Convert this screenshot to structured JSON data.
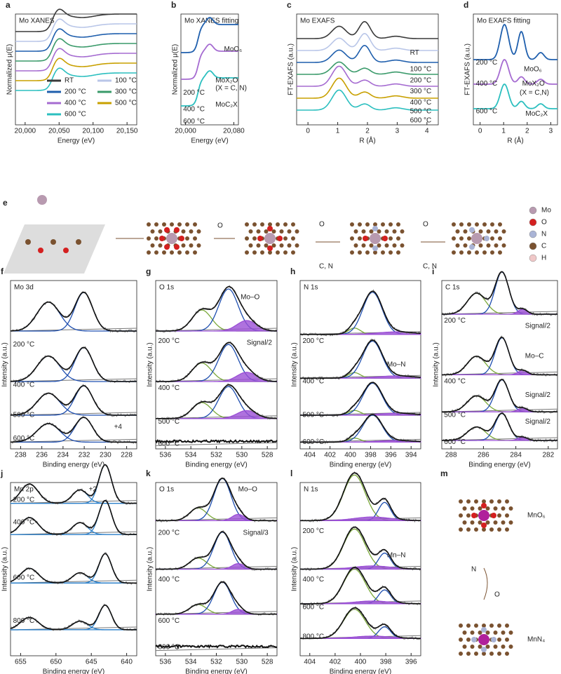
{
  "panels": {
    "a": {
      "letter": "a",
      "title": "Mo XANES",
      "ylabel": "Normalized μ(E)",
      "xlabel": "Energy (eV)",
      "xticks": [
        "20,000",
        "20,050",
        "20,100",
        "20,150"
      ],
      "legend": [
        "RT",
        "100 °C",
        "200 °C",
        "300 °C",
        "400 °C",
        "500 °C",
        "600 °C"
      ],
      "colors": [
        "#3a3a3a",
        "#b9c6e8",
        "#1f5fad",
        "#3a9a6a",
        "#a56bd1",
        "#c8a000",
        "#2bbfbf"
      ]
    },
    "b": {
      "letter": "b",
      "title": "Mo XANES fitting",
      "ylabel": "Normalized μ(E)",
      "xlabel": "Energy (eV)",
      "xticks": [
        "20,000",
        "20,080"
      ],
      "labels": [
        "MoO₆",
        "MoX₂O",
        "(X = C, N)",
        "MoC₂X",
        "200 °C",
        "400 °C",
        "600 °C"
      ]
    },
    "c": {
      "letter": "c",
      "title": "Mo EXAFS",
      "ylabel": "FT-EXAFS (a.u.)",
      "xlabel": "R (Å)",
      "xticks": [
        "0",
        "1",
        "2",
        "3",
        "4"
      ],
      "labels": [
        "RT",
        "100 °C",
        "200 °C",
        "300 °C",
        "400 °C",
        "500 °C",
        "600 °C"
      ]
    },
    "d": {
      "letter": "d",
      "title": "Mo EXAFS fitting",
      "ylabel": "FT-EXAFS (a.u.)",
      "xlabel": "R (Å)",
      "xticks": [
        "0",
        "1",
        "2",
        "3"
      ],
      "labels": [
        "200 °C",
        "MoO₆",
        "400 °C",
        "MoX₂O",
        "(X = C,N)",
        "600 °C",
        "MoC₂X"
      ]
    },
    "e": {
      "letter": "e",
      "legend": [
        "Mo",
        "O",
        "N",
        "C",
        "H"
      ],
      "arrows": [
        "O",
        "O",
        "C, N",
        "O",
        "C, N"
      ]
    },
    "f": {
      "letter": "f",
      "title": "Mo 3d",
      "ylabel": "Intensity (a.u.)",
      "xlabel": "Binding energy (eV)",
      "xticks": [
        "238",
        "236",
        "234",
        "232",
        "230",
        "228"
      ],
      "labels": [
        "200 °C",
        "400 °C",
        "500 °C",
        "600 °C",
        "+4"
      ]
    },
    "g": {
      "letter": "g",
      "title": "O 1s",
      "ylabel": "Intensity (a.u.)",
      "xlabel": "Binding energy (eV)",
      "xticks": [
        "536",
        "534",
        "532",
        "530",
        "528"
      ],
      "labels": [
        "200 °C",
        "400 °C",
        "500 °C",
        "600 °C",
        "Mo–O",
        "Signal/2"
      ]
    },
    "h": {
      "letter": "h",
      "title": "N 1s",
      "ylabel": "Intensity (a.u.)",
      "xlabel": "Binding energy (eV)",
      "xticks": [
        "404",
        "402",
        "400",
        "398",
        "396",
        "394"
      ],
      "labels": [
        "200 °C",
        "400 °C",
        "500 °C",
        "600 °C",
        "Mo–N"
      ]
    },
    "i": {
      "letter": "i",
      "title": "C 1s",
      "ylabel": "Intensity (a.u.)",
      "xlabel": "Binding energy (eV)",
      "xticks": [
        "288",
        "286",
        "284",
        "282"
      ],
      "labels": [
        "200 °C",
        "400 °C",
        "500 °C",
        "600 °C",
        "Signal/2",
        "Mo–C",
        "Signal/2",
        "Signal/2"
      ]
    },
    "j": {
      "letter": "j",
      "title": "Mn 2p",
      "ylabel": "Intensity (a.u.)",
      "xlabel": "Binding energy (eV)",
      "xticks": [
        "655",
        "650",
        "645",
        "640"
      ],
      "labels": [
        "200 °C",
        "400 °C",
        "600 °C",
        "800 °C",
        "+2"
      ]
    },
    "k": {
      "letter": "k",
      "title": "O 1s",
      "ylabel": "Intensity (a.u.)",
      "xlabel": "Binding energy (eV)",
      "xticks": [
        "536",
        "534",
        "532",
        "530",
        "528"
      ],
      "labels": [
        "200 °C",
        "400 °C",
        "600 °C",
        "800 °C",
        "Mo–O",
        "Signal/3"
      ]
    },
    "l": {
      "letter": "l",
      "title": "N 1s",
      "ylabel": "Intensity (a.u.)",
      "xlabel": "Binding energy (eV)",
      "xticks": [
        "404",
        "402",
        "400",
        "398",
        "396"
      ],
      "labels": [
        "200 °C",
        "400 °C",
        "600 °C",
        "800 °C",
        "Mn–N"
      ]
    },
    "m": {
      "letter": "m",
      "labels": [
        "MnO₆",
        "N",
        "O",
        "MnN₄"
      ]
    }
  }
}
